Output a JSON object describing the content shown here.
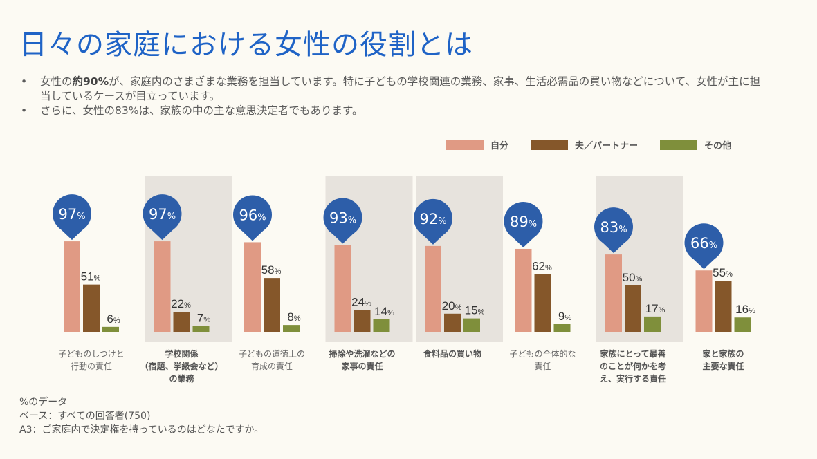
{
  "title": "日々の家庭における女性の役割とは",
  "bullets": [
    {
      "pre": "女性の",
      "bold": "約90%",
      "post": "が、家庭内のさまざまな業務を担当しています。特に子どもの学校関連の業務、家事、生活必需品の買い物などについて、女性が主に担当しているケースが目立っています。"
    },
    {
      "pre": "さらに、女性の83%は、家族の中の主な意思決定者でもあります。",
      "bold": "",
      "post": ""
    }
  ],
  "chart_data": {
    "type": "bar",
    "categories": [
      "子どものしつけと\n行動の責任",
      "学校関係\n（宿題、学級会など）\nの業務",
      "子どもの道徳上の\n育成の責任",
      "掃除や洗濯などの\n家事の責任",
      "食料品の買い物",
      "子どもの全体的な\n責任",
      "家族にとって最善\nのことが何かを考\nえ、実行する責任",
      "家と家族の\n主要な責任"
    ],
    "highlighted": [
      false,
      true,
      false,
      true,
      true,
      false,
      true,
      false
    ],
    "series": [
      {
        "name": "自分",
        "color": "#e09a84",
        "values": [
          97,
          97,
          96,
          93,
          92,
          89,
          83,
          66
        ]
      },
      {
        "name": "夫／パートナー",
        "color": "#85572a",
        "values": [
          51,
          22,
          58,
          24,
          20,
          62,
          50,
          55
        ]
      },
      {
        "name": "その他",
        "color": "#7f8f3b",
        "values": [
          6,
          7,
          8,
          14,
          15,
          9,
          17,
          16
        ]
      }
    ],
    "value_suffix": "%",
    "marker_color": "#2d5ea9",
    "ylim": [
      0,
      100
    ],
    "legend": "top-right"
  },
  "footer": [
    "%のデータ",
    "ベース：すべての回答者(750)",
    "A3：ご家庭内で決定権を持っているのはどなたですか。"
  ]
}
